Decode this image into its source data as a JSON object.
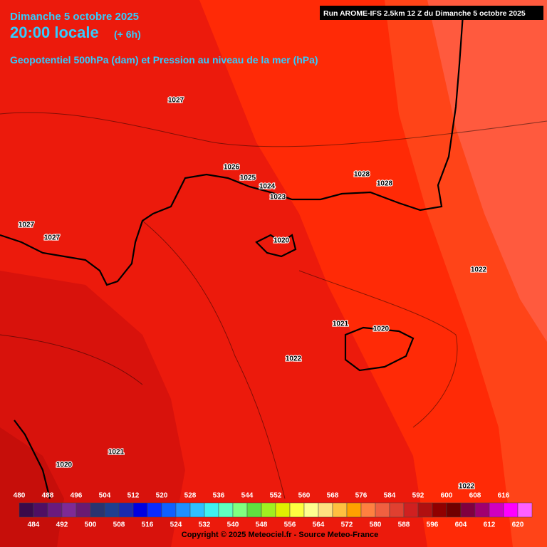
{
  "header": {
    "date": "Dimanche 5 octobre 2025",
    "time": "20:00 locale",
    "offset": "(+ 6h)",
    "subtitle": "Geopotentiel 500hPa (dam) et Pression au niveau de la mer (hPa)",
    "run": "Run AROME-IFS 2.5km 12 Z du Dimanche 5 octobre 2025"
  },
  "isobar_labels": [
    1027,
    1026,
    1025,
    1024,
    1023,
    1028,
    1028,
    1027,
    1027,
    1020,
    1022,
    1021,
    1020,
    1022,
    1021,
    1020,
    1022
  ],
  "scale": {
    "values": [
      480,
      484,
      488,
      492,
      496,
      500,
      504,
      508,
      512,
      516,
      520,
      524,
      528,
      532,
      536,
      540,
      544,
      548,
      552,
      556,
      560,
      564,
      568,
      572,
      576,
      580,
      584,
      588,
      592,
      596,
      600,
      604,
      608,
      612,
      616,
      620
    ],
    "colors": [
      "#3a0a4a",
      "#4e0f63",
      "#6a1a7e",
      "#7e2a96",
      "#6a1a72",
      "#2a3470",
      "#1f3f8f",
      "#1a2ab0",
      "#0000e0",
      "#0a2aff",
      "#1060ff",
      "#2090ff",
      "#30c0ff",
      "#40f0f0",
      "#60ffc0",
      "#80ff80",
      "#60e040",
      "#a0f020",
      "#e0f000",
      "#ffff40",
      "#ffff90",
      "#ffe080",
      "#ffc040",
      "#ffa000",
      "#ff8040",
      "#f06040",
      "#e04030",
      "#d02020",
      "#b01010",
      "#900000",
      "#700000",
      "#800040",
      "#a00070",
      "#d000c0",
      "#ff00ff",
      "#ff60ff"
    ]
  },
  "footer": "Copyright © 2025 Meteociel.fr - Source Meteo-France"
}
